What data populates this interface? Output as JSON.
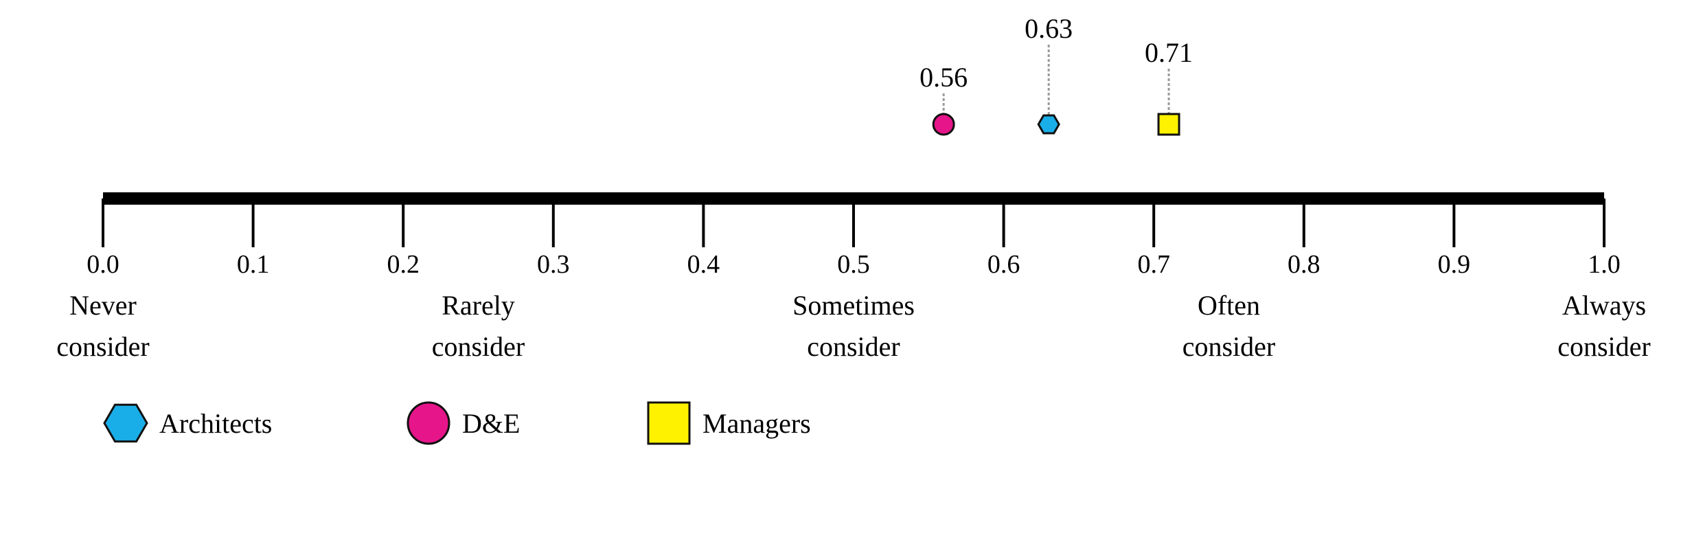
{
  "chart_data": {
    "type": "scatter",
    "title": "",
    "xlabel": "",
    "ylabel": "",
    "xlim": [
      0.0,
      1.0
    ],
    "ticks": [
      "0.0",
      "0.1",
      "0.2",
      "0.3",
      "0.4",
      "0.5",
      "0.6",
      "0.7",
      "0.8",
      "0.9",
      "1.0"
    ],
    "scale_labels": [
      {
        "x": 0.0,
        "lines": [
          "Never",
          "consider"
        ]
      },
      {
        "x": 0.25,
        "lines": [
          "Rarely",
          "consider"
        ]
      },
      {
        "x": 0.5,
        "lines": [
          "Sometimes",
          "consider"
        ]
      },
      {
        "x": 0.75,
        "lines": [
          "Often",
          "consider"
        ]
      },
      {
        "x": 1.0,
        "lines": [
          "Always",
          "consider"
        ]
      }
    ],
    "series": [
      {
        "name": "Architects",
        "value": 0.63,
        "label": "0.63",
        "marker": "hexagon",
        "color": "#1aaee8"
      },
      {
        "name": "D&E",
        "value": 0.56,
        "label": "0.56",
        "marker": "circle",
        "color": "#e6158a"
      },
      {
        "name": "Managers",
        "value": 0.71,
        "label": "0.71",
        "marker": "square",
        "color": "#fff200"
      }
    ],
    "legend_position": "bottom-left"
  }
}
